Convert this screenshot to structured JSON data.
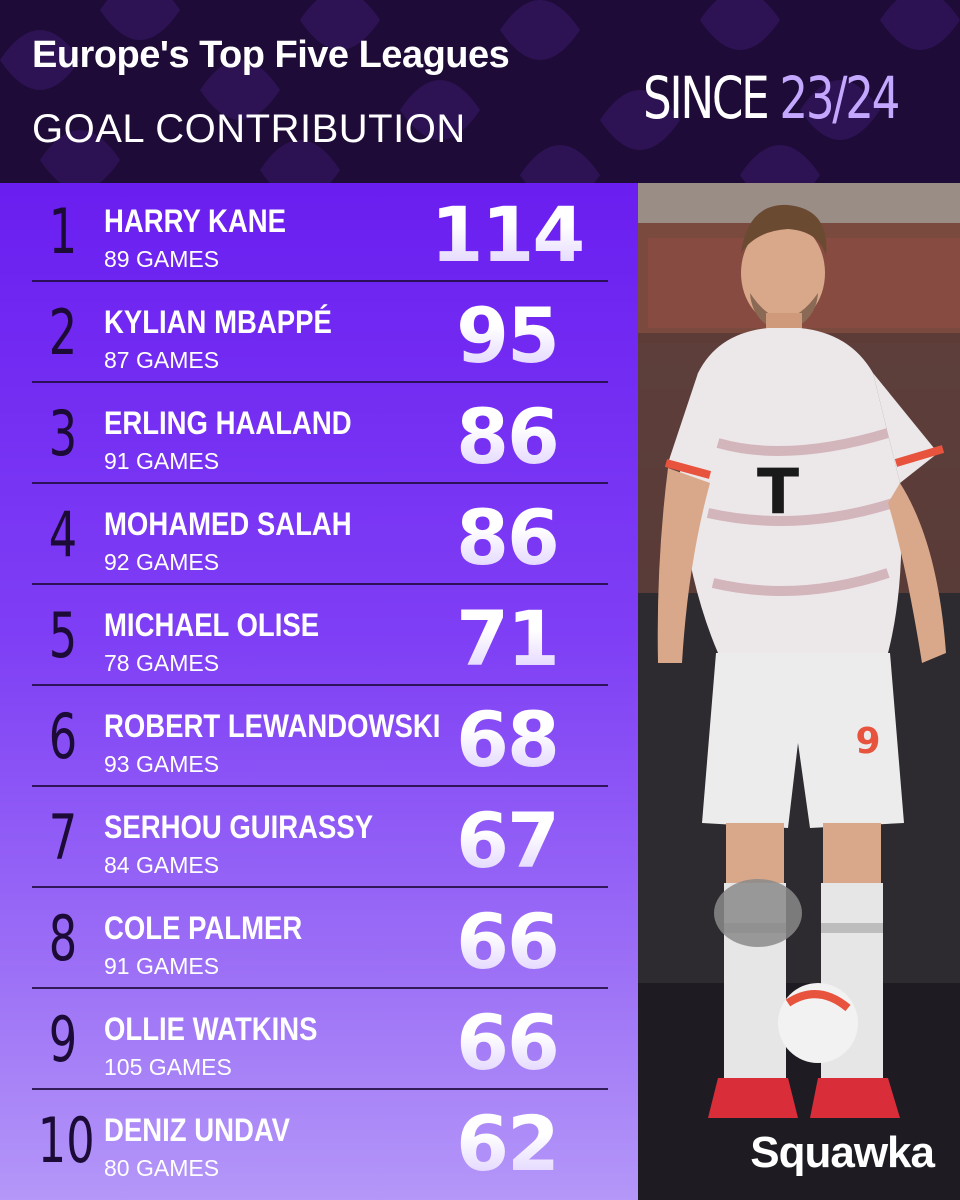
{
  "header": {
    "title": "Europe's Top Five Leagues",
    "subtitle": "GOAL CONTRIBUTION",
    "since_word": "SINCE",
    "since_season": "23/24"
  },
  "players": [
    {
      "rank": "1",
      "name": "HARRY KANE",
      "games": "89 GAMES",
      "value": "114"
    },
    {
      "rank": "2",
      "name": "KYLIAN MBAPPÉ",
      "games": "87 GAMES",
      "value": "95"
    },
    {
      "rank": "3",
      "name": "ERLING HAALAND",
      "games": "91 GAMES",
      "value": "86"
    },
    {
      "rank": "4",
      "name": "MOHAMED SALAH",
      "games": "92 GAMES",
      "value": "86"
    },
    {
      "rank": "5",
      "name": "MICHAEL OLISE",
      "games": "78 GAMES",
      "value": "71"
    },
    {
      "rank": "6",
      "name": "ROBERT LEWANDOWSKI",
      "games": "93 GAMES",
      "value": "68"
    },
    {
      "rank": "7",
      "name": "SERHOU GUIRASSY",
      "games": "84 GAMES",
      "value": "67"
    },
    {
      "rank": "8",
      "name": "COLE PALMER",
      "games": "91 GAMES",
      "value": "66"
    },
    {
      "rank": "9",
      "name": "OLLIE WATKINS",
      "games": "105 GAMES",
      "value": "66"
    },
    {
      "rank": "10",
      "name": "DENIZ UNDAV",
      "games": "80 GAMES",
      "value": "62"
    }
  ],
  "photo": {
    "jersey_number": "9",
    "sponsor_letter": "T"
  },
  "brand": "Squawka",
  "colors": {
    "header_bg": "#1e0b38",
    "list_top": "#6a1ef0",
    "list_bottom": "#b497f8",
    "accent_lavender": "#c4a8ff",
    "rank_dark": "#1c0b36"
  }
}
